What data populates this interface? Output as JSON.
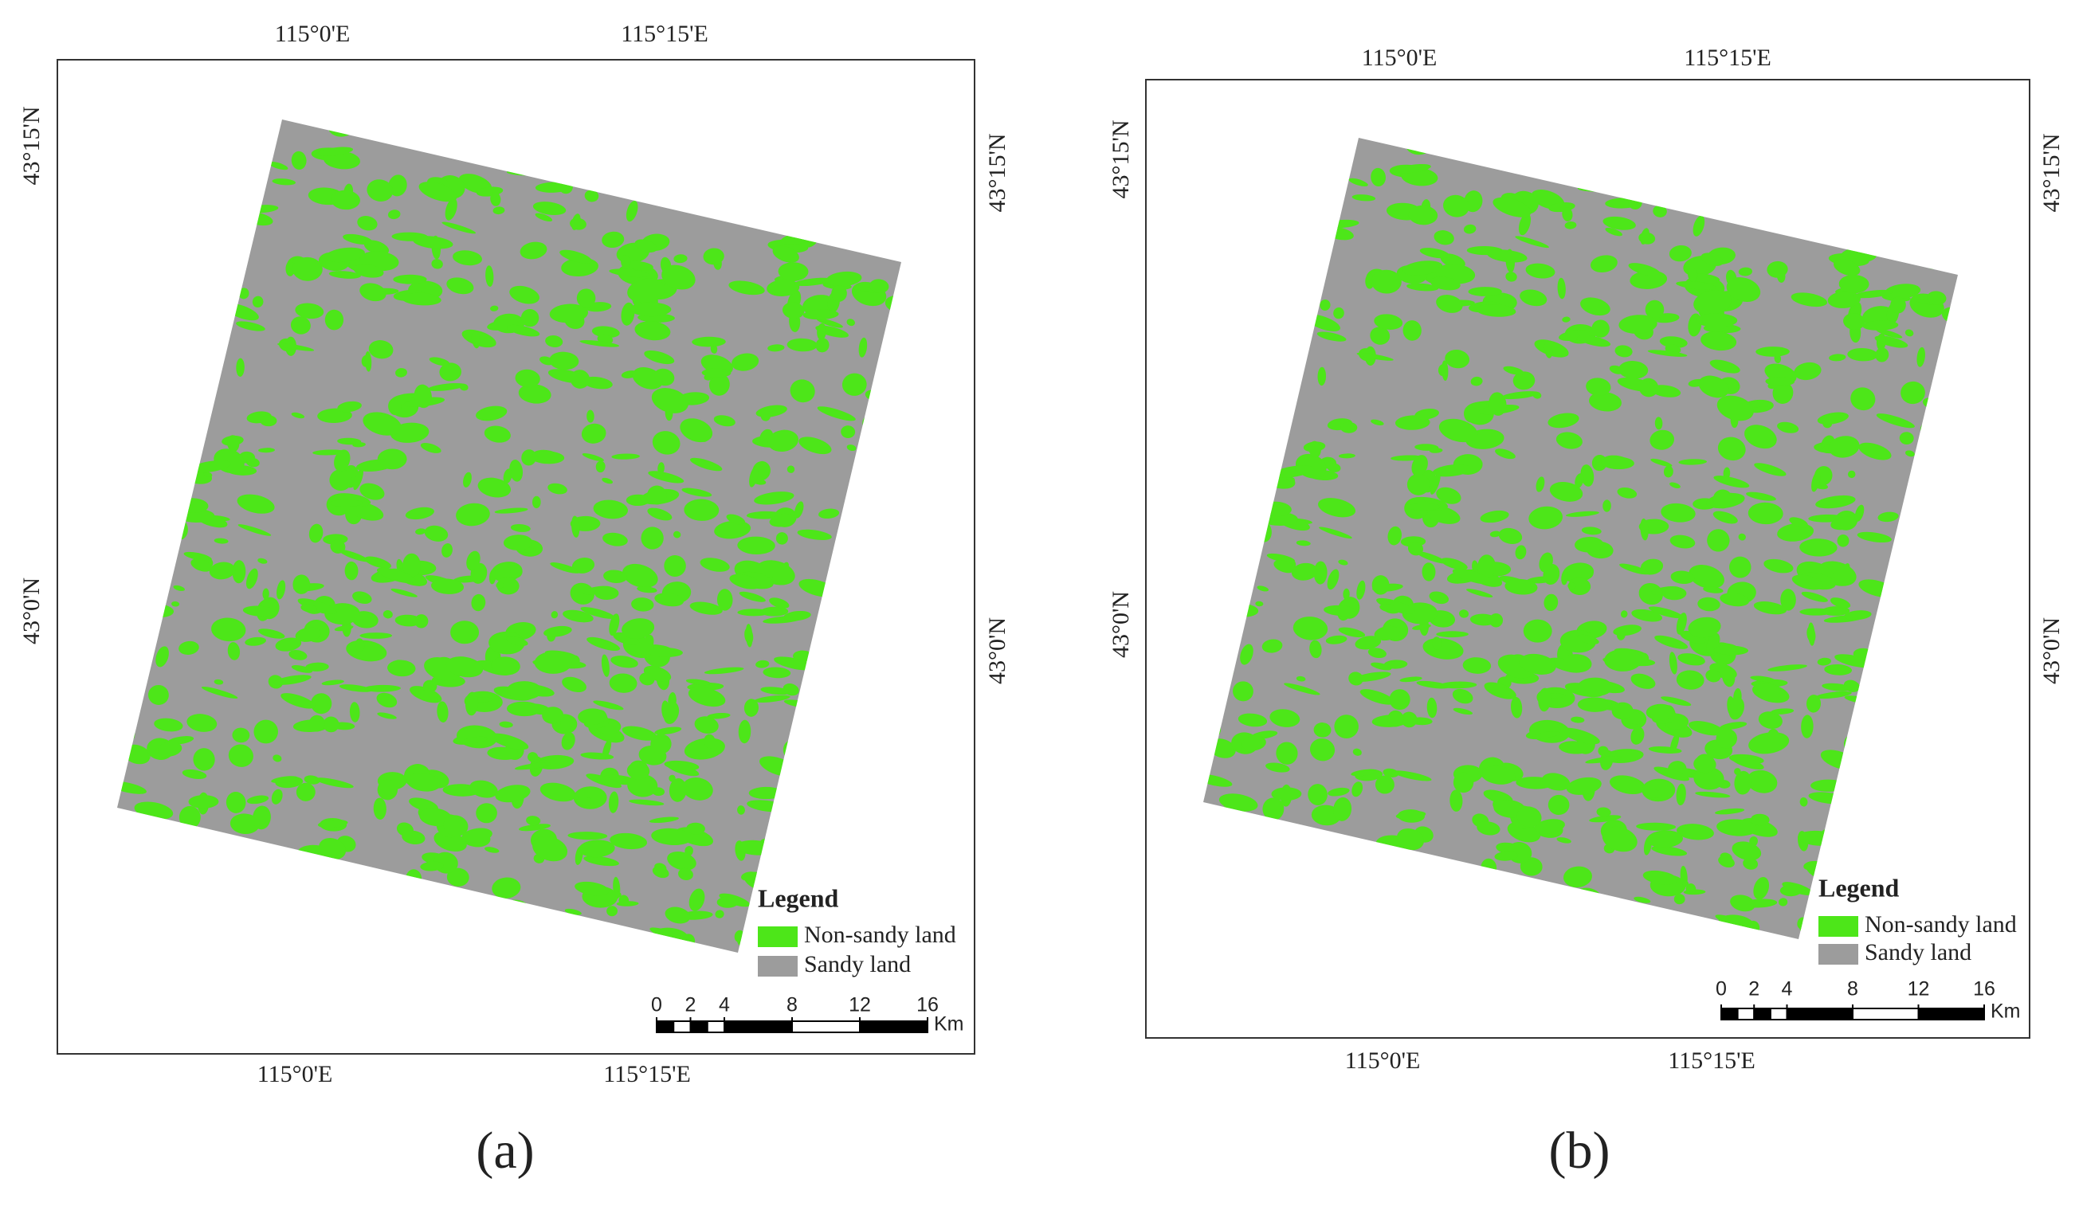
{
  "panels": [
    {
      "caption": "(a)",
      "top_labels": [
        "115°0'E",
        "115°15'E"
      ],
      "bottom_labels": [
        "115°0'E",
        "115°15'E"
      ],
      "left_labels": [
        "43°15'N",
        "43°0'N"
      ],
      "right_labels": [
        "43°15'N",
        "43°0'N"
      ],
      "legend": {
        "title": "Legend",
        "items": [
          {
            "label": "Non-sandy land",
            "color": "#4de619"
          },
          {
            "label": "Sandy land",
            "color": "#9c9c9c"
          }
        ]
      },
      "scale_bar": {
        "ticks": [
          0,
          2,
          4,
          8,
          12,
          16
        ],
        "unit": "Km"
      }
    },
    {
      "caption": "(b)",
      "top_labels": [
        "115°0'E",
        "115°15'E"
      ],
      "bottom_labels": [
        "115°0'E",
        "115°15'E"
      ],
      "left_labels": [
        "43°15'N",
        "43°0'N"
      ],
      "right_labels": [
        "43°15'N",
        "43°0'N"
      ],
      "legend": {
        "title": "Legend",
        "items": [
          {
            "label": "Non-sandy land",
            "color": "#4de619"
          },
          {
            "label": "Sandy land",
            "color": "#9c9c9c"
          }
        ]
      },
      "scale_bar": {
        "ticks": [
          0,
          2,
          4,
          8,
          12,
          16
        ],
        "unit": "Km"
      }
    }
  ]
}
